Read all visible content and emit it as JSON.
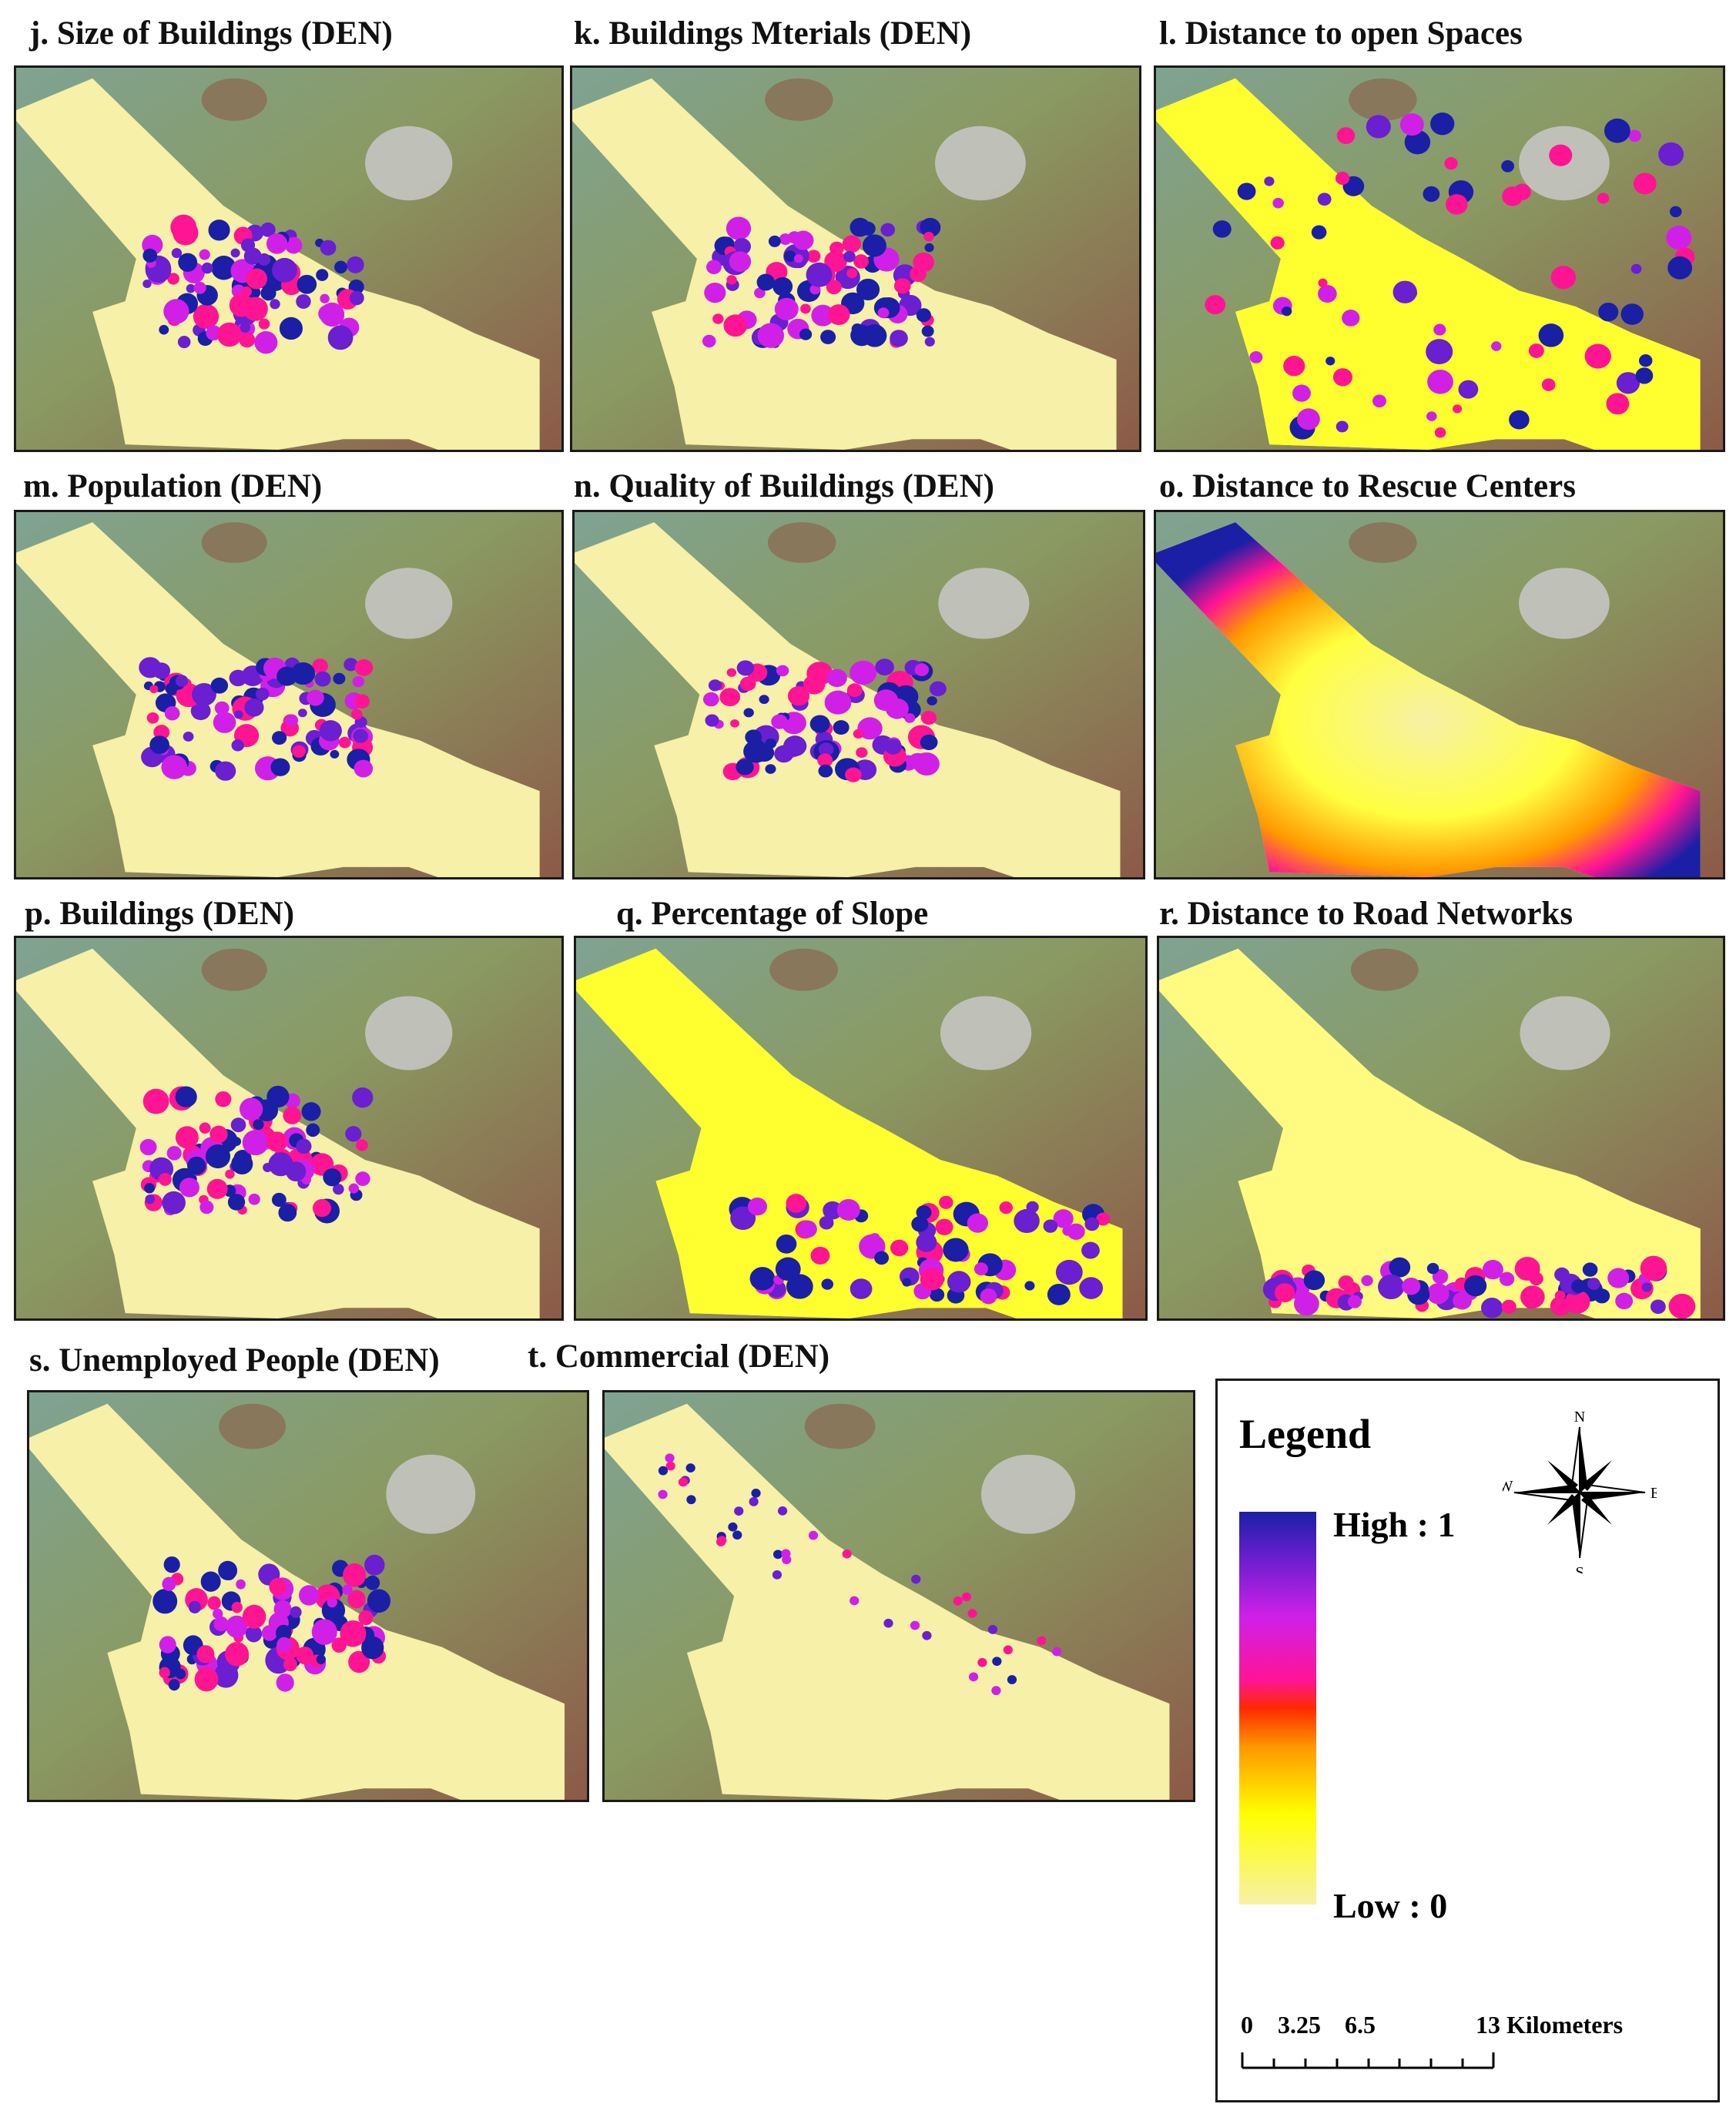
{
  "panels": [
    {
      "id": "j",
      "title": "j. Size of Buildings (DEN)",
      "pattern": "buildings"
    },
    {
      "id": "k",
      "title": "k. Buildings Mterials (DEN)",
      "pattern": "buildings"
    },
    {
      "id": "l",
      "title": "l. Distance to open Spaces",
      "pattern": "open-spaces"
    },
    {
      "id": "m",
      "title": "m. Population (DEN)",
      "pattern": "buildings"
    },
    {
      "id": "n",
      "title": "n. Quality of Buildings (DEN)",
      "pattern": "buildings"
    },
    {
      "id": "o",
      "title": "o. Distance to Rescue Centers",
      "pattern": "rescue"
    },
    {
      "id": "p",
      "title": "p. Buildings (DEN)",
      "pattern": "buildings"
    },
    {
      "id": "q",
      "title": "q. Percentage of Slope",
      "pattern": "slope"
    },
    {
      "id": "r",
      "title": "r. Distance to Road Networks",
      "pattern": "roads"
    },
    {
      "id": "s",
      "title": "s. Unemployed People (DEN)",
      "pattern": "buildings"
    },
    {
      "id": "t",
      "title": "t. Commercial (DEN)",
      "pattern": "commercial"
    }
  ],
  "legend": {
    "title": "Legend",
    "high_label": "High : 1",
    "low_label": "Low : 0",
    "ramp_colors": [
      "#1a1fa6",
      "#6a1fd0",
      "#d020e8",
      "#ff1493",
      "#ff2a00",
      "#ff9900",
      "#ffff00",
      "#f7f1a6"
    ],
    "north": "N",
    "south": "S",
    "east": "E",
    "west": "W",
    "scale_labels": [
      "0",
      "3.25",
      "6.5",
      "13 Kilometers"
    ]
  },
  "colors": {
    "terrain_low": "#7fa392",
    "terrain_mid": "#8a9a62",
    "terrain_high": "#8c5a48",
    "study_area_low": "#f6f0a8",
    "hotspot_high": "#1a1fa6"
  }
}
